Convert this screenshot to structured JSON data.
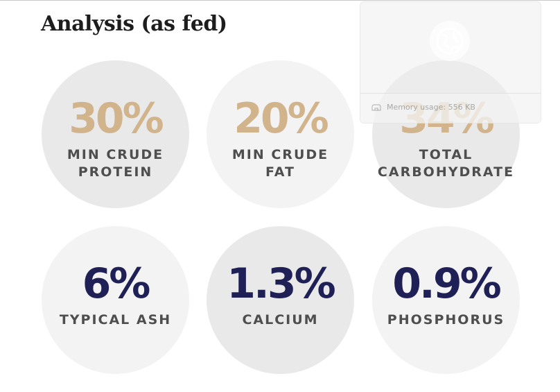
{
  "page": {
    "title": "Analysis (as fed)"
  },
  "stats": [
    {
      "value": "30%",
      "label_line1": "MIN CRUDE",
      "label_line2": "PROTEIN"
    },
    {
      "value": "20%",
      "label_line1": "MIN CRUDE",
      "label_line2": "FAT"
    },
    {
      "value": "34%",
      "label_line1": "TOTAL",
      "label_line2": "CARBOHYDRATE"
    },
    {
      "value": "6%",
      "label_line1": "TYPICAL ASH"
    },
    {
      "value": "1.3%",
      "label_line1": "CALCIUM"
    },
    {
      "value": "0.9%",
      "label_line1": "PHOSPHORUS"
    }
  ],
  "overlay": {
    "memory_text": "Memory usage: 556 KB",
    "icon": "globe-icon"
  },
  "colors": {
    "accent_tan": "#d2b48c",
    "accent_navy": "#1f2156",
    "label_gray": "#4e4e4e",
    "circle_light": "#f3f3f3",
    "circle_dark": "#e9e9e9"
  }
}
